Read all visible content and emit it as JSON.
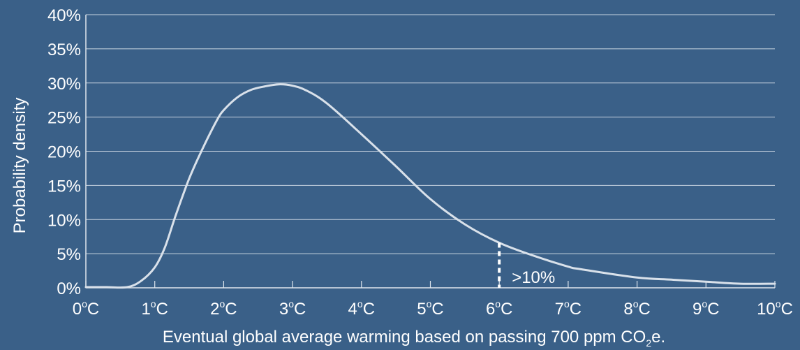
{
  "chart_data": {
    "type": "line",
    "title": "",
    "xlabel": {
      "prefix": "Eventual global average warming based on passing 700 ppm CO",
      "subscript": "2",
      "suffix": "e."
    },
    "ylabel": "Probability density",
    "xlim": [
      0,
      10
    ],
    "ylim": [
      0,
      40
    ],
    "x_ticks": [
      {
        "value": 0,
        "num": "0",
        "deg": "o",
        "unit": "C"
      },
      {
        "value": 1,
        "num": "1",
        "deg": "o",
        "unit": "C"
      },
      {
        "value": 2,
        "num": "2",
        "deg": "o",
        "unit": "C"
      },
      {
        "value": 3,
        "num": "3",
        "deg": "o",
        "unit": "C"
      },
      {
        "value": 4,
        "num": "4",
        "deg": "o",
        "unit": "C"
      },
      {
        "value": 5,
        "num": "5",
        "deg": "o",
        "unit": "C"
      },
      {
        "value": 6,
        "num": "6",
        "deg": "o",
        "unit": "C"
      },
      {
        "value": 7,
        "num": "7",
        "deg": "o",
        "unit": "C"
      },
      {
        "value": 8,
        "num": "8",
        "deg": "o",
        "unit": "C"
      },
      {
        "value": 9,
        "num": "9",
        "deg": "o",
        "unit": "C"
      },
      {
        "value": 10,
        "num": "10",
        "deg": "o",
        "unit": "C"
      }
    ],
    "y_ticks": [
      {
        "value": 0,
        "label": "0%"
      },
      {
        "value": 5,
        "label": "5%"
      },
      {
        "value": 10,
        "label": "10%"
      },
      {
        "value": 15,
        "label": "15%"
      },
      {
        "value": 20,
        "label": "20%"
      },
      {
        "value": 25,
        "label": "25%"
      },
      {
        "value": 30,
        "label": "30%"
      },
      {
        "value": 35,
        "label": "35%"
      },
      {
        "value": 40,
        "label": "40%"
      }
    ],
    "grid": true,
    "series": [
      {
        "x": [
          0,
          0.3,
          0.6,
          0.8,
          1.0,
          1.15,
          1.3,
          1.5,
          1.7,
          1.9,
          2.0,
          2.2,
          2.4,
          2.6,
          2.8,
          3.0,
          3.2,
          3.5,
          4.0,
          4.5,
          5.0,
          5.5,
          6.0,
          6.5,
          7.0,
          7.2,
          8.0,
          8.5,
          9.0,
          9.5,
          10.0
        ],
        "y": [
          0.1,
          0.1,
          0.1,
          1.0,
          3.0,
          6.0,
          10.5,
          16.0,
          20.5,
          24.5,
          26.0,
          27.9,
          29.0,
          29.5,
          29.8,
          29.6,
          28.9,
          27.0,
          22.5,
          17.8,
          13.0,
          9.3,
          6.6,
          4.7,
          3.1,
          2.7,
          1.5,
          1.2,
          0.9,
          0.6,
          0.6
        ],
        "color": "#d9e1ea"
      }
    ],
    "annotations": [
      {
        "x": 6,
        "text": ">10%",
        "style": "dashed-vertical-marker"
      }
    ]
  },
  "colors": {
    "background": "#3a6088",
    "grid": "#c7d3df",
    "axis": "#dfe6ee",
    "curve": "#d9e1ea",
    "text": "#ffffff"
  }
}
